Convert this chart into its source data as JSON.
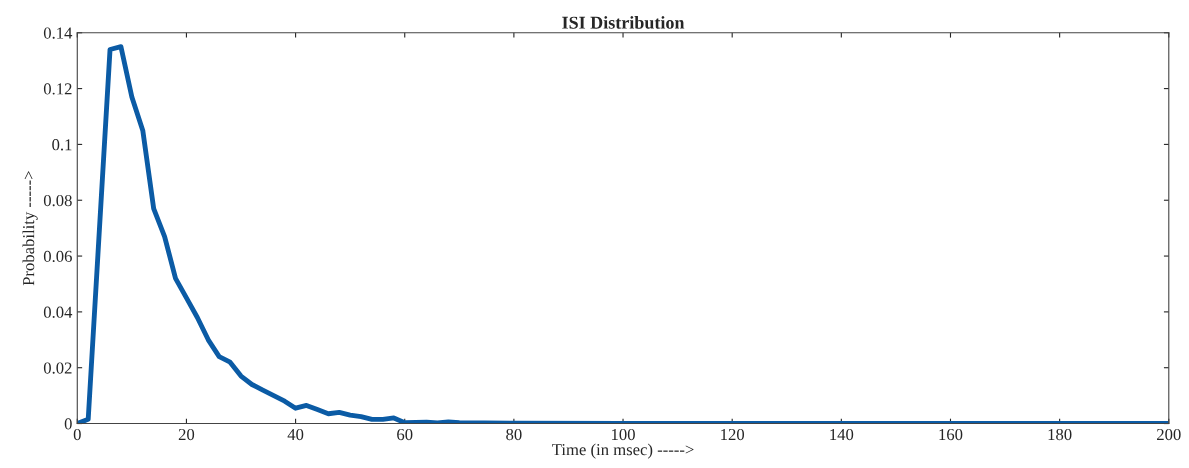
{
  "chart_data": {
    "type": "line",
    "title": "ISI Distribution",
    "xlabel": "Time (in msec) ----->",
    "ylabel": "Probability ----->",
    "x": [
      0,
      2,
      6,
      8,
      10,
      12,
      14,
      16,
      18,
      20,
      22,
      24,
      26,
      28,
      30,
      32,
      34,
      36,
      38,
      40,
      42,
      44,
      46,
      48,
      50,
      52,
      54,
      56,
      58,
      60,
      64,
      66,
      68,
      70,
      80,
      100,
      200
    ],
    "series": [
      {
        "color": "#0b5ba5",
        "values": [
          0,
          0.0015,
          0.134,
          0.135,
          0.117,
          0.105,
          0.077,
          0.067,
          0.052,
          0.045,
          0.038,
          0.03,
          0.024,
          0.022,
          0.017,
          0.014,
          0.012,
          0.01,
          0.008,
          0.0055,
          0.0065,
          0.005,
          0.0035,
          0.004,
          0.003,
          0.0025,
          0.0015,
          0.0015,
          0.002,
          0.0003,
          0.0005,
          0.0002,
          0.0006,
          0.0003,
          0.0001,
          0,
          0
        ]
      }
    ],
    "xlim": [
      0,
      200
    ],
    "xticks": [
      0,
      20,
      40,
      60,
      80,
      100,
      120,
      140,
      160,
      180,
      200
    ],
    "ylim": [
      0,
      0.14
    ],
    "yticks": [
      0,
      0.02,
      0.04,
      0.06,
      0.08,
      0.1,
      0.12,
      0.14
    ],
    "grid": false,
    "legend": false,
    "marker": "none",
    "line_style": "solid"
  }
}
